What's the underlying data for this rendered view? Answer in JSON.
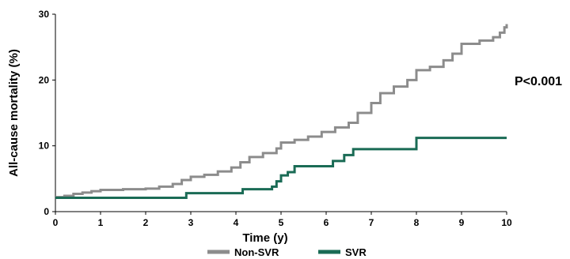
{
  "chart_data": {
    "type": "line",
    "title": "",
    "xlabel": "Time (y)",
    "ylabel": "All-cause mortality (%)",
    "xlim": [
      0,
      10
    ],
    "ylim": [
      0,
      30
    ],
    "x_ticks": [
      0,
      1,
      2,
      3,
      4,
      5,
      6,
      7,
      8,
      9,
      10
    ],
    "y_ticks": [
      0,
      10,
      20,
      30
    ],
    "grid": false,
    "legend_position": "bottom",
    "annotation": "P<0.001",
    "series": [
      {
        "name": "Non-SVR",
        "color": "#8c8c8c",
        "step": true,
        "points": [
          [
            0,
            2.2
          ],
          [
            0.2,
            2.4
          ],
          [
            0.4,
            2.7
          ],
          [
            0.6,
            2.9
          ],
          [
            0.8,
            3.1
          ],
          [
            1.0,
            3.3
          ],
          [
            1.5,
            3.4
          ],
          [
            2.0,
            3.5
          ],
          [
            2.3,
            3.8
          ],
          [
            2.6,
            4.2
          ],
          [
            2.8,
            4.8
          ],
          [
            3.0,
            5.3
          ],
          [
            3.3,
            5.6
          ],
          [
            3.6,
            6.1
          ],
          [
            3.9,
            6.7
          ],
          [
            4.1,
            7.5
          ],
          [
            4.3,
            8.3
          ],
          [
            4.6,
            8.9
          ],
          [
            4.9,
            9.6
          ],
          [
            5.0,
            10.5
          ],
          [
            5.3,
            10.9
          ],
          [
            5.6,
            11.4
          ],
          [
            5.9,
            12.1
          ],
          [
            6.2,
            12.8
          ],
          [
            6.5,
            13.5
          ],
          [
            6.7,
            15.0
          ],
          [
            7.0,
            16.5
          ],
          [
            7.2,
            18.0
          ],
          [
            7.5,
            19.0
          ],
          [
            7.8,
            20.0
          ],
          [
            8.0,
            21.5
          ],
          [
            8.3,
            22.0
          ],
          [
            8.6,
            23.0
          ],
          [
            8.8,
            24.0
          ],
          [
            9.0,
            25.5
          ],
          [
            9.4,
            26.0
          ],
          [
            9.7,
            26.5
          ],
          [
            9.85,
            27.2
          ],
          [
            9.95,
            28.0
          ],
          [
            10.0,
            28.5
          ]
        ]
      },
      {
        "name": "SVR",
        "color": "#1a6b55",
        "step": true,
        "points": [
          [
            0,
            2.1
          ],
          [
            2.9,
            2.8
          ],
          [
            4.15,
            3.4
          ],
          [
            4.8,
            3.8
          ],
          [
            4.9,
            4.6
          ],
          [
            5.0,
            5.5
          ],
          [
            5.15,
            6.0
          ],
          [
            5.3,
            6.9
          ],
          [
            6.15,
            7.7
          ],
          [
            6.4,
            8.6
          ],
          [
            6.6,
            9.5
          ],
          [
            8.0,
            11.2
          ],
          [
            10.0,
            11.2
          ]
        ]
      }
    ]
  }
}
